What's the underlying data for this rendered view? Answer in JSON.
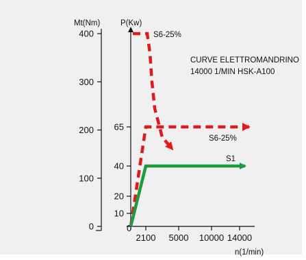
{
  "chart_data": {
    "type": "line",
    "title_lines": [
      "CURVE ELETTROMANDRINO",
      "14000 1/MIN HSK-A100"
    ],
    "left_axis": {
      "label": "Mt(Nm)",
      "ticks": [
        0,
        100,
        200,
        300,
        400
      ],
      "range": [
        0,
        400
      ]
    },
    "power_axis": {
      "label": "P(Kw)",
      "ticks": [
        0,
        10,
        20,
        40,
        65
      ],
      "range": [
        0,
        65
      ]
    },
    "x_axis": {
      "label": "n(1/min)",
      "ticks": [
        2100,
        5000,
        10000,
        14000
      ]
    },
    "series": [
      {
        "name": "S6-25%",
        "quantity": "torque",
        "style": "dashed",
        "color": "#e01b1b",
        "x": [
          0,
          1500,
          1800,
          2200,
          3000,
          4500,
          6000
        ],
        "y": [
          400,
          400,
          360,
          300,
          245,
          185,
          160
        ]
      },
      {
        "name": "S6-25%",
        "quantity": "power",
        "style": "dashed",
        "color": "#e01b1b",
        "x": [
          0,
          2100,
          14000
        ],
        "y": [
          0,
          65,
          65
        ]
      },
      {
        "name": "S1",
        "quantity": "power",
        "style": "solid",
        "color": "#1e9b3e",
        "x": [
          0,
          2100,
          14000
        ],
        "y": [
          0,
          40,
          40
        ]
      }
    ],
    "labels": {
      "s6_torque": "S6-25%",
      "s6_power": "S6-25%",
      "s1": "S1"
    },
    "x_origin_label": "0"
  }
}
